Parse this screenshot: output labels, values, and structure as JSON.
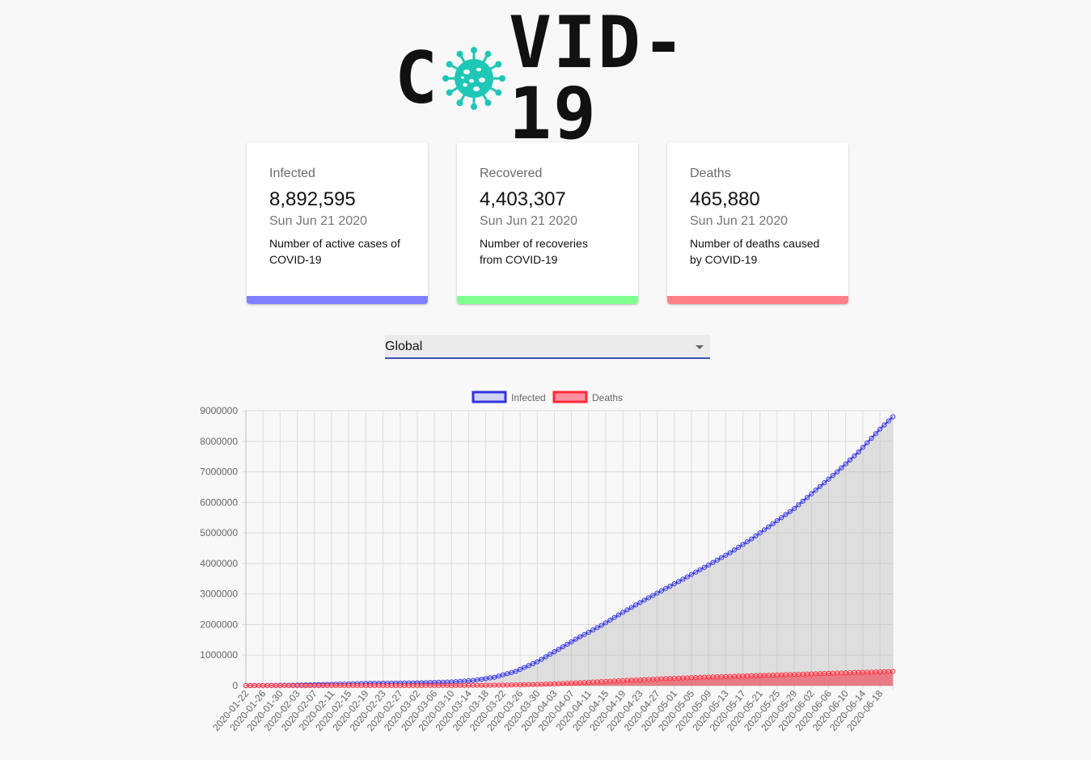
{
  "logo": {
    "text_left": "C",
    "text_right": "VID-19",
    "virus_icon": "coronavirus-icon",
    "virus_color": "#1fc7b6"
  },
  "cards": [
    {
      "label": "Infected",
      "value": "8,892,595",
      "date": "Sun Jun 21 2020",
      "desc_line1": "Number of active cases of",
      "desc_line2": "COVID-19",
      "color": "#8080ff"
    },
    {
      "label": "Recovered",
      "value": "4,403,307",
      "date": "Sun Jun 21 2020",
      "desc_line1": "Number of recoveries",
      "desc_line2": "from COVID-19",
      "color": "#80ff90"
    },
    {
      "label": "Deaths",
      "value": "465,880",
      "date": "Sun Jun 21 2020",
      "desc_line1": "Number of deaths caused",
      "desc_line2": "by COVID-19",
      "color": "#ff8088"
    }
  ],
  "country_select": {
    "value": "Global",
    "icon": "dropdown-caret-icon"
  },
  "chart_data": {
    "type": "line",
    "legend": [
      {
        "name": "Infected",
        "stroke": "#3333dd",
        "fill": "rgba(60,60,230,0.2)"
      },
      {
        "name": "Deaths",
        "stroke": "#ff2a3a",
        "fill": "rgba(255,60,80,0.55)"
      }
    ],
    "legend_position": "top",
    "grid": true,
    "ylim": [
      0,
      9000000
    ],
    "y_ticks": [
      "0",
      "1000000",
      "2000000",
      "3000000",
      "4000000",
      "5000000",
      "6000000",
      "7000000",
      "8000000",
      "9000000"
    ],
    "x_tick_labels": [
      "2020-01-22",
      "2020-01-26",
      "2020-01-30",
      "2020-02-03",
      "2020-02-07",
      "2020-02-11",
      "2020-02-15",
      "2020-02-19",
      "2020-02-23",
      "2020-02-27",
      "2020-03-02",
      "2020-03-06",
      "2020-03-10",
      "2020-03-14",
      "2020-03-18",
      "2020-03-22",
      "2020-03-26",
      "2020-03-30",
      "2020-04-03",
      "2020-04-07",
      "2020-04-11",
      "2020-04-15",
      "2020-04-19",
      "2020-04-23",
      "2020-04-27",
      "2020-05-01",
      "2020-05-05",
      "2020-05-09",
      "2020-05-13",
      "2020-05-17",
      "2020-05-21",
      "2020-05-25",
      "2020-05-29",
      "2020-06-02",
      "2020-06-06",
      "2020-06-10",
      "2020-06-14",
      "2020-06-18"
    ],
    "x_start": "2020-01-22",
    "x_end": "2020-06-21",
    "series": [
      {
        "name": "Infected",
        "points": [
          [
            "2020-01-22",
            555
          ],
          [
            "2020-02-01",
            12000
          ],
          [
            "2020-02-10",
            40000
          ],
          [
            "2020-02-20",
            76000
          ],
          [
            "2020-03-01",
            88000
          ],
          [
            "2020-03-10",
            119000
          ],
          [
            "2020-03-15",
            168000
          ],
          [
            "2020-03-20",
            272000
          ],
          [
            "2020-03-25",
            468000
          ],
          [
            "2020-03-30",
            780000
          ],
          [
            "2020-04-04",
            1190000
          ],
          [
            "2020-04-09",
            1600000
          ],
          [
            "2020-04-14",
            1970000
          ],
          [
            "2020-04-19",
            2400000
          ],
          [
            "2020-04-24",
            2800000
          ],
          [
            "2020-04-29",
            3180000
          ],
          [
            "2020-05-04",
            3560000
          ],
          [
            "2020-05-09",
            3950000
          ],
          [
            "2020-05-14",
            4350000
          ],
          [
            "2020-05-19",
            4800000
          ],
          [
            "2020-05-24",
            5300000
          ],
          [
            "2020-05-29",
            5800000
          ],
          [
            "2020-06-03",
            6400000
          ],
          [
            "2020-06-08",
            7000000
          ],
          [
            "2020-06-13",
            7650000
          ],
          [
            "2020-06-18",
            8400000
          ],
          [
            "2020-06-21",
            8800000
          ]
        ]
      },
      {
        "name": "Deaths",
        "points": [
          [
            "2020-01-22",
            17
          ],
          [
            "2020-02-10",
            1000
          ],
          [
            "2020-03-01",
            3000
          ],
          [
            "2020-03-10",
            4300
          ],
          [
            "2020-03-20",
            11000
          ],
          [
            "2020-03-30",
            37000
          ],
          [
            "2020-04-09",
            95000
          ],
          [
            "2020-04-19",
            165000
          ],
          [
            "2020-04-29",
            228000
          ],
          [
            "2020-05-09",
            280000
          ],
          [
            "2020-05-19",
            324000
          ],
          [
            "2020-05-29",
            365000
          ],
          [
            "2020-06-08",
            410000
          ],
          [
            "2020-06-21",
            465000
          ]
        ]
      }
    ]
  }
}
